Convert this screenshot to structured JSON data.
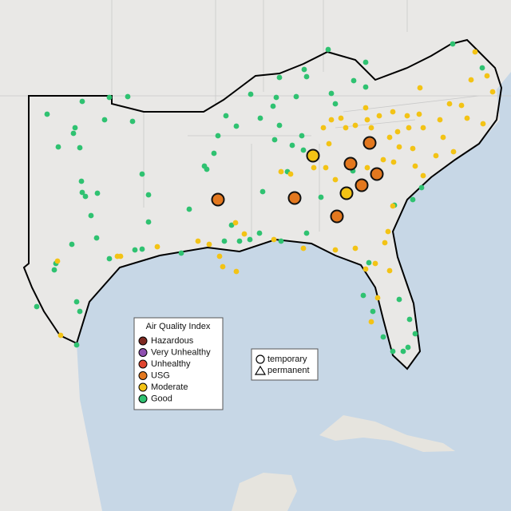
{
  "legend": {
    "title": "Air Quality Index",
    "items": [
      {
        "label": "Hazardous",
        "color": "#7e2a22"
      },
      {
        "label": "Very Unhealthy",
        "color": "#8e4fb0"
      },
      {
        "label": "Unhealthy",
        "color": "#e0452f"
      },
      {
        "label": "USG",
        "color": "#e3781f"
      },
      {
        "label": "Moderate",
        "color": "#f3c315"
      },
      {
        "label": "Good",
        "color": "#2fc271"
      }
    ]
  },
  "shape_legend": {
    "items": [
      {
        "label": "temporary"
      },
      {
        "label": "permanent"
      }
    ]
  }
}
